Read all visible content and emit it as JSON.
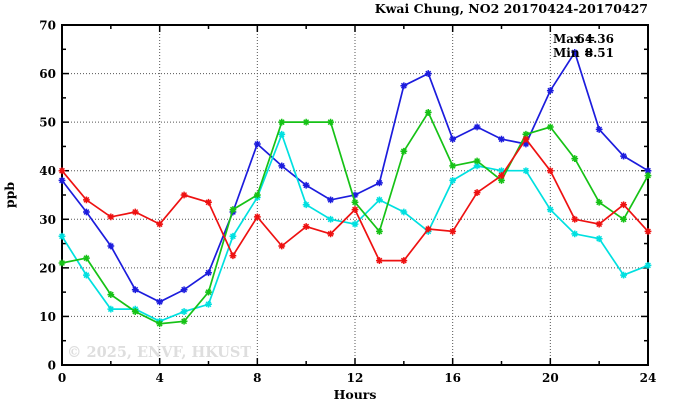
{
  "title": "Kwai Chung, NO2 20170424-20170427",
  "annotations": {
    "max_prefix": "Max =",
    "max_value": "64.36",
    "min_prefix": "Min =",
    "min_value": "8.51"
  },
  "watermark": "© 2025, ENVF, HKUST",
  "colors": {
    "red": "#ee1111",
    "green": "#16c216",
    "blue": "#1c1cdd",
    "cyan": "#00e0e0",
    "grid": "#555555",
    "axis": "#000000",
    "watermark": "#dedede"
  },
  "chart_data": {
    "type": "line",
    "title": "Kwai Chung, NO2 20170424-20170427",
    "xlabel": "Hours",
    "ylabel": "ppb",
    "xlim": [
      0,
      24
    ],
    "ylim": [
      0,
      70
    ],
    "x_major_ticks": [
      0,
      4,
      8,
      12,
      16,
      20,
      24
    ],
    "x_minor_step": 2,
    "y_major_ticks": [
      0,
      10,
      20,
      30,
      40,
      50,
      60,
      70
    ],
    "y_minor_step": 5,
    "x_grid": [
      4,
      8,
      12,
      16,
      20
    ],
    "y_grid": [
      10,
      20,
      30,
      40,
      50,
      60
    ],
    "grid": "dotted",
    "legend": "none",
    "max": 64.36,
    "min": 8.51,
    "x": [
      0,
      1,
      2,
      3,
      4,
      5,
      6,
      7,
      8,
      9,
      10,
      11,
      12,
      13,
      14,
      15,
      16,
      17,
      18,
      19,
      20,
      21,
      22,
      23,
      24
    ],
    "series": [
      {
        "name": "blue-series",
        "color": "#1c1cdd",
        "values": [
          38,
          31.5,
          24.5,
          15.5,
          13,
          15.5,
          19,
          31.5,
          45.5,
          41,
          37,
          34,
          35,
          37.5,
          57.5,
          60,
          46.5,
          49,
          46.5,
          45.5,
          56.5,
          64.36,
          48.5,
          43,
          40
        ]
      },
      {
        "name": "cyan-series",
        "color": "#00e0e0",
        "values": [
          26.5,
          18.5,
          11.5,
          11.5,
          9,
          11,
          12.5,
          26.5,
          34.5,
          47.5,
          33,
          30,
          29,
          34,
          31.5,
          27.5,
          38,
          41,
          40,
          40,
          32,
          27,
          26,
          18.5,
          20.5
        ]
      },
      {
        "name": "green-series",
        "color": "#16c216",
        "values": [
          21,
          22,
          14.5,
          11,
          8.51,
          9,
          15,
          32,
          35,
          50,
          50,
          50,
          33.5,
          27.5,
          44,
          52,
          41,
          42,
          38,
          47.5,
          49,
          42.5,
          33.5,
          30,
          39
        ]
      },
      {
        "name": "red-series",
        "color": "#ee1111",
        "values": [
          40,
          34,
          30.5,
          31.5,
          29,
          35,
          33.5,
          22.5,
          30.5,
          24.5,
          28.5,
          27,
          32,
          21.5,
          21.5,
          28,
          27.5,
          35.5,
          39,
          46.5,
          40,
          30,
          29,
          33,
          27.5
        ]
      }
    ]
  }
}
